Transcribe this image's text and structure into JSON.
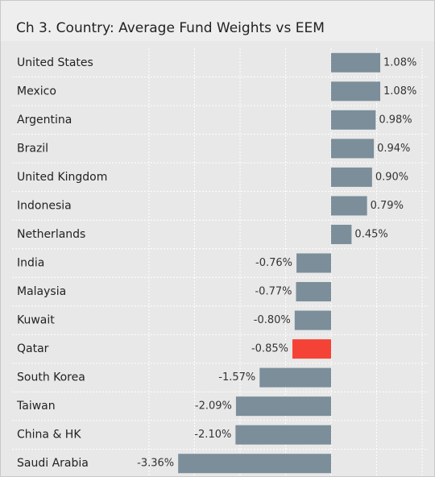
{
  "chart_data": {
    "type": "bar",
    "orientation": "horizontal",
    "title": "Ch 3. Country:  Average Fund Weights vs EEM",
    "categories": [
      "United States",
      "Mexico",
      "Argentina",
      "Brazil",
      "United Kingdom",
      "Indonesia",
      "Netherlands",
      "India",
      "Malaysia",
      "Kuwait",
      "Qatar",
      "South Korea",
      "Taiwan",
      "China & HK",
      "Saudi Arabia"
    ],
    "values": [
      1.08,
      1.08,
      0.98,
      0.94,
      0.9,
      0.79,
      0.45,
      -0.76,
      -0.77,
      -0.8,
      -0.85,
      -1.57,
      -2.09,
      -2.1,
      -3.36
    ],
    "value_labels": [
      "1.08%",
      "1.08%",
      "0.98%",
      "0.94%",
      "0.90%",
      "0.79%",
      "0.45%",
      "-0.76%",
      "-0.77%",
      "-0.80%",
      "-0.85%",
      "-1.57%",
      "-2.09%",
      "-2.10%",
      "-3.36%"
    ],
    "colors": [
      "#7b8e9a",
      "#7b8e9a",
      "#7b8e9a",
      "#7b8e9a",
      "#7b8e9a",
      "#7b8e9a",
      "#7b8e9a",
      "#7b8e9a",
      "#7b8e9a",
      "#7b8e9a",
      "#f44336",
      "#7b8e9a",
      "#7b8e9a",
      "#7b8e9a",
      "#7b8e9a"
    ],
    "xlim": [
      -4,
      2
    ],
    "xticks": [
      -4,
      -3,
      -2,
      -1,
      0,
      1,
      2
    ],
    "grid": true
  }
}
